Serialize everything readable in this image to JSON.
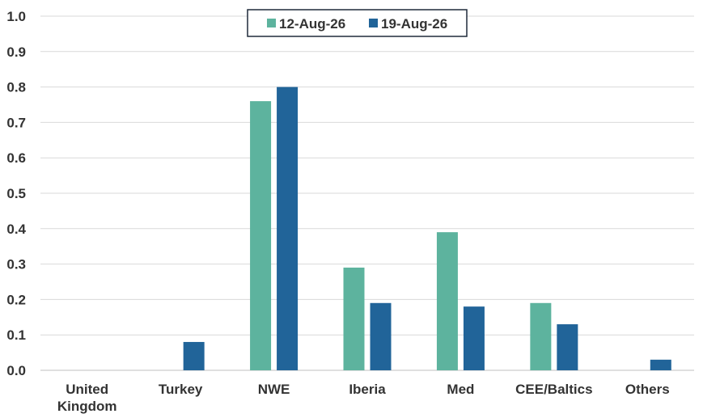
{
  "chart_data": {
    "type": "bar",
    "categories": [
      "United Kingdom",
      "Turkey",
      "NWE",
      "Iberia",
      "Med",
      "CEE/Baltics",
      "Others"
    ],
    "category_lines": [
      [
        "United",
        "Kingdom"
      ],
      [
        "Turkey"
      ],
      [
        "NWE"
      ],
      [
        "Iberia"
      ],
      [
        "Med"
      ],
      [
        "CEE/Baltics"
      ],
      [
        "Others"
      ]
    ],
    "series": [
      {
        "name": "12-Aug-26",
        "color": "#5db39e",
        "values": [
          0,
          0,
          0.76,
          0.29,
          0.39,
          0.19,
          0
        ]
      },
      {
        "name": "19-Aug-26",
        "color": "#216499",
        "values": [
          0,
          0.08,
          0.8,
          0.19,
          0.18,
          0.13,
          0.03
        ]
      }
    ],
    "ylim": [
      0,
      1.0
    ],
    "yticks": [
      "0.0",
      "0.1",
      "0.2",
      "0.3",
      "0.4",
      "0.5",
      "0.6",
      "0.7",
      "0.8",
      "0.9",
      "1.0"
    ],
    "grid": true,
    "legend": "top-center",
    "title": "",
    "xlabel": "",
    "ylabel": ""
  }
}
